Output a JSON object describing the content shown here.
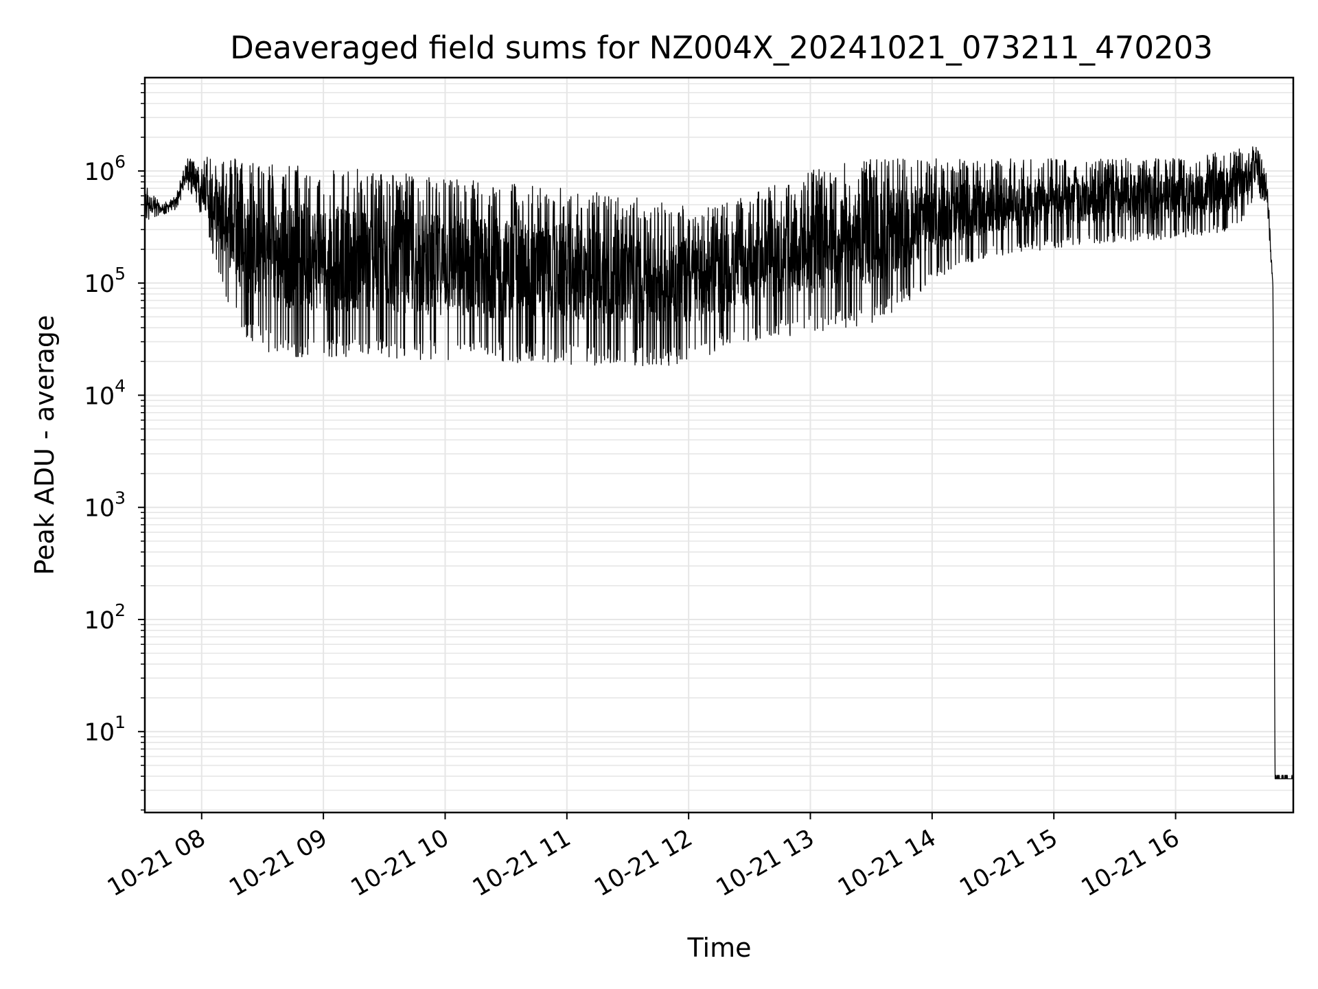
{
  "chart_data": {
    "type": "line",
    "title": "Deaveraged field sums for NZ004X_20241021_073211_470203",
    "xlabel": "Time",
    "ylabel": "Peak ADU - average",
    "yscale": "log",
    "xlim": [
      "2024-10-21 07:32",
      "2024-10-21 16:58"
    ],
    "ylim": [
      1.9,
      6800000
    ],
    "grid": true,
    "line_color": "#000000",
    "x_ticks": [
      {
        "value": "2024-10-21 08:00",
        "label": "10-21 08"
      },
      {
        "value": "2024-10-21 09:00",
        "label": "10-21 09"
      },
      {
        "value": "2024-10-21 10:00",
        "label": "10-21 10"
      },
      {
        "value": "2024-10-21 11:00",
        "label": "10-21 11"
      },
      {
        "value": "2024-10-21 12:00",
        "label": "10-21 12"
      },
      {
        "value": "2024-10-21 13:00",
        "label": "10-21 13"
      },
      {
        "value": "2024-10-21 14:00",
        "label": "10-21 14"
      },
      {
        "value": "2024-10-21 15:00",
        "label": "10-21 15"
      },
      {
        "value": "2024-10-21 16:00",
        "label": "10-21 16"
      }
    ],
    "y_ticks": [
      {
        "value": 10,
        "base": "10",
        "exp": "1"
      },
      {
        "value": 100,
        "base": "10",
        "exp": "2"
      },
      {
        "value": 1000,
        "base": "10",
        "exp": "3"
      },
      {
        "value": 10000,
        "base": "10",
        "exp": "4"
      },
      {
        "value": 100000,
        "base": "10",
        "exp": "5"
      },
      {
        "value": 1000000,
        "base": "10",
        "exp": "6"
      }
    ],
    "series": [
      {
        "values_note_envelope": true,
        "x": [
          "2024-10-21 07:32",
          "2024-10-21 07:40",
          "2024-10-21 07:47",
          "2024-10-21 07:53",
          "2024-10-21 08:00",
          "2024-10-21 08:10",
          "2024-10-21 08:20",
          "2024-10-21 08:30",
          "2024-10-21 08:45",
          "2024-10-21 09:00",
          "2024-10-21 09:15",
          "2024-10-21 09:30",
          "2024-10-21 09:45",
          "2024-10-21 10:00",
          "2024-10-21 10:15",
          "2024-10-21 10:30",
          "2024-10-21 10:45",
          "2024-10-21 11:00",
          "2024-10-21 11:15",
          "2024-10-21 11:30",
          "2024-10-21 11:45",
          "2024-10-21 12:00",
          "2024-10-21 12:15",
          "2024-10-21 12:30",
          "2024-10-21 12:45",
          "2024-10-21 13:00",
          "2024-10-21 13:15",
          "2024-10-21 13:30",
          "2024-10-21 13:45",
          "2024-10-21 14:00",
          "2024-10-21 14:15",
          "2024-10-21 14:30",
          "2024-10-21 14:45",
          "2024-10-21 15:00",
          "2024-10-21 15:15",
          "2024-10-21 15:30",
          "2024-10-21 15:45",
          "2024-10-21 16:00",
          "2024-10-21 16:15",
          "2024-10-21 16:30",
          "2024-10-21 16:40",
          "2024-10-21 16:45",
          "2024-10-21 16:48",
          "2024-10-21 16:49",
          "2024-10-21 16:58"
        ],
        "upper": [
          800000,
          500000,
          600000,
          1300000,
          1400000,
          1400000,
          1300000,
          1200000,
          1150000,
          1100000,
          1050000,
          1000000,
          950000,
          900000,
          850000,
          800000,
          750000,
          700000,
          650000,
          600000,
          550000,
          500000,
          500000,
          600000,
          800000,
          1000000,
          1200000,
          1300000,
          1300000,
          1300000,
          1300000,
          1300000,
          1300000,
          1300000,
          1300000,
          1300000,
          1300000,
          1300000,
          1400000,
          1600000,
          1700000,
          1000000,
          100000,
          4,
          4
        ],
        "lower": [
          350000,
          400000,
          450000,
          700000,
          400000,
          90000,
          35000,
          25000,
          22000,
          21000,
          21000,
          21000,
          20000,
          20000,
          19000,
          19000,
          19000,
          18500,
          18000,
          18000,
          18000,
          19000,
          25000,
          30000,
          33000,
          35000,
          38000,
          42000,
          60000,
          100000,
          140000,
          170000,
          190000,
          200000,
          220000,
          230000,
          240000,
          250000,
          270000,
          300000,
          600000,
          500000,
          80000,
          3.8,
          3.8
        ]
      }
    ]
  }
}
